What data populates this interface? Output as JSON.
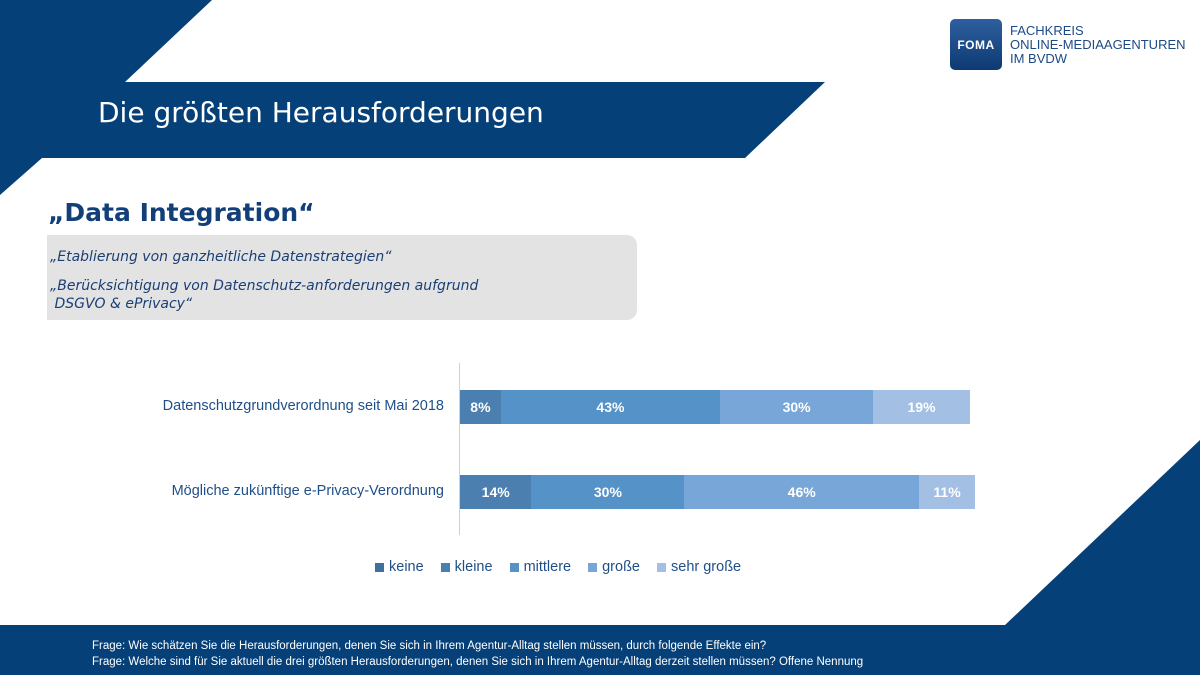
{
  "header": {
    "title": "Die größten Herausforderungen"
  },
  "logo": {
    "mark": "FOMA",
    "lines": [
      "FACHKREIS",
      "ONLINE-MEDIAAGENTUREN",
      "IM BVDW"
    ]
  },
  "section": {
    "heading": "„Data Integration“",
    "quotes": [
      "„Etablierung von ganzheitliche Datenstrategien“",
      "„Berücksichtigung von Datenschutz-anforderungen aufgrund",
      " DSGVO & ePrivacy“"
    ]
  },
  "colors": {
    "brand": "#064079",
    "text": "#1f4f88"
  },
  "chart_data": {
    "type": "bar",
    "orientation": "horizontal-stacked-100",
    "categories": [
      "Datenschutzgrundverordnung seit Mai 2018",
      "Mögliche zukünftige e-Privacy-Verordnung"
    ],
    "series": [
      {
        "name": "keine",
        "color": "#3f6f9f",
        "values": [
          0,
          0
        ]
      },
      {
        "name": "kleine",
        "color": "#4a7fb0",
        "values": [
          8,
          14
        ]
      },
      {
        "name": "mittlere",
        "color": "#5592c8",
        "values": [
          43,
          30
        ]
      },
      {
        "name": "große",
        "color": "#78a6d8",
        "values": [
          30,
          46
        ]
      },
      {
        "name": "sehr große",
        "color": "#a3bfe3",
        "values": [
          19,
          11
        ]
      }
    ],
    "unit": "%",
    "xlim": [
      0,
      100
    ],
    "legend": "bottom"
  },
  "footer": {
    "notes": [
      "Frage: Wie schätzen Sie die Herausforderungen, denen Sie sich in Ihrem Agentur-Alltag stellen müssen, durch folgende Effekte ein?",
      "Frage: Welche sind für Sie aktuell die drei größten Herausforderungen, denen Sie sich in Ihrem Agentur-Alltag derzeit stellen müssen? Offene Nennung"
    ]
  }
}
